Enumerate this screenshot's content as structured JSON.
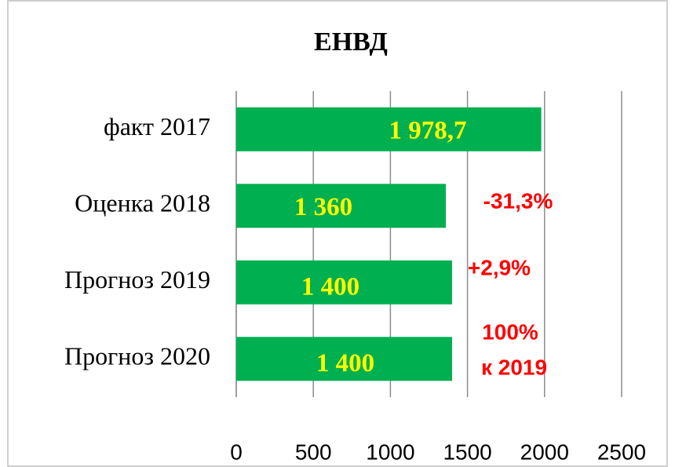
{
  "chart_data": {
    "type": "barh",
    "title": "ЕНВД",
    "categories": [
      "факт 2017",
      "Оценка 2018",
      "Прогноз 2019",
      "Прогноз 2020"
    ],
    "values": [
      1978.7,
      1360,
      1400,
      1400
    ],
    "value_labels": [
      "1 978,7",
      "1 360",
      "1 400",
      "1 400"
    ],
    "color": "#00b050",
    "xlim": [
      0,
      2500
    ],
    "xticks": [
      0,
      500,
      1000,
      1500,
      2000,
      2500
    ],
    "grid": true,
    "annotations": [
      "-31,3%",
      "+2,9%",
      "100%",
      "к 2019"
    ]
  }
}
